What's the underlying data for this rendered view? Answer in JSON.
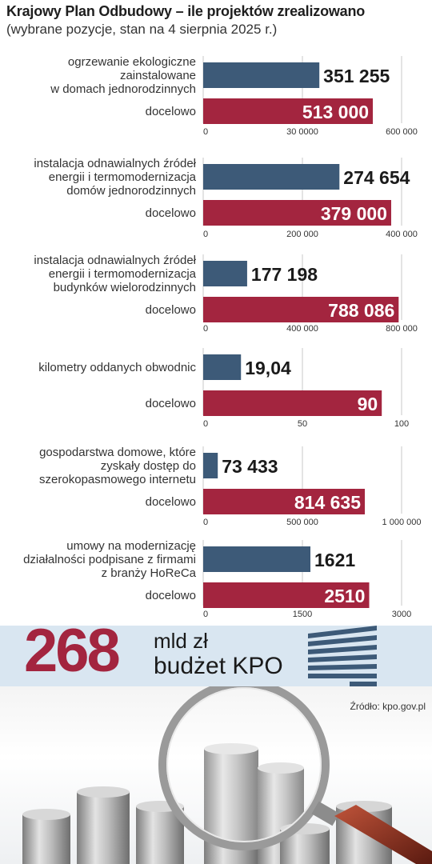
{
  "header": {
    "title": "Krajowy Plan Odbudowy – ile projektów zrealizowano",
    "subtitle": "(wybrane pozycje, stan na 4 sierpnia 2025 r.)"
  },
  "colors": {
    "achieved": "#3d5a78",
    "target": "#a3253f"
  },
  "chart_data": [
    {
      "type": "bar",
      "category_lines": [
        "ogrzewanie ekologiczne",
        "zainstalowane",
        "w domach jednorodzinnych"
      ],
      "target_label": "docelowo",
      "values": [
        351255,
        513000
      ],
      "value_labels": [
        "351 255",
        "513 000"
      ],
      "xlim": [
        0,
        600000
      ],
      "ticks": [
        0,
        300000,
        600000
      ],
      "tick_labels": [
        "0",
        "30 0000",
        "600 000"
      ]
    },
    {
      "type": "bar",
      "category_lines": [
        "instalacja odnawialnych źródeł",
        "energii i  termomodernizacja",
        "domów jednorodzinnych"
      ],
      "target_label": "docelowo",
      "values": [
        274654,
        379000
      ],
      "value_labels": [
        "274 654",
        "379 000"
      ],
      "xlim": [
        0,
        400000
      ],
      "ticks": [
        0,
        200000,
        400000
      ],
      "tick_labels": [
        "0",
        "200 000",
        "400 000"
      ]
    },
    {
      "type": "bar",
      "category_lines": [
        "instalacja odnawialnych źródeł",
        "energii i  termomodernizacja",
        "budynków wielorodzinnych"
      ],
      "target_label": "docelowo",
      "values": [
        177198,
        788086
      ],
      "value_labels": [
        "177 198",
        "788 086"
      ],
      "xlim": [
        0,
        800000
      ],
      "ticks": [
        0,
        400000,
        800000
      ],
      "tick_labels": [
        "0",
        "400 000",
        "800 000"
      ]
    },
    {
      "type": "bar",
      "category_lines": [
        "kilometry oddanych obwodnic"
      ],
      "target_label": "docelowo",
      "values": [
        19.04,
        90
      ],
      "value_labels": [
        "19,04",
        "90"
      ],
      "xlim": [
        0,
        100
      ],
      "ticks": [
        0,
        50,
        100
      ],
      "tick_labels": [
        "0",
        "50",
        "100"
      ]
    },
    {
      "type": "bar",
      "category_lines": [
        "gospodarstwa domowe, które",
        "zyskały dostęp do",
        "szerokopasmowego internetu"
      ],
      "target_label": "docelowo",
      "values": [
        73433,
        814635
      ],
      "value_labels": [
        "73 433",
        "814 635"
      ],
      "xlim": [
        0,
        1000000
      ],
      "ticks": [
        0,
        500000,
        1000000
      ],
      "tick_labels": [
        "0",
        "500 000",
        "1 000 000"
      ]
    },
    {
      "type": "bar",
      "category_lines": [
        "umowy na modernizację",
        "działalności podpisane z firmami",
        "z branży HoReCa"
      ],
      "target_label": "docelowo",
      "values": [
        1621,
        2510
      ],
      "value_labels": [
        "1621",
        "2510"
      ],
      "xlim": [
        0,
        3000
      ],
      "ticks": [
        0,
        1500,
        3000
      ],
      "tick_labels": [
        "0",
        "1500",
        "3000"
      ]
    }
  ],
  "budget": {
    "value": "268",
    "unit": "mld zł",
    "label": "budżet KPO"
  },
  "source": "Źródło: kpo.gov.pl"
}
